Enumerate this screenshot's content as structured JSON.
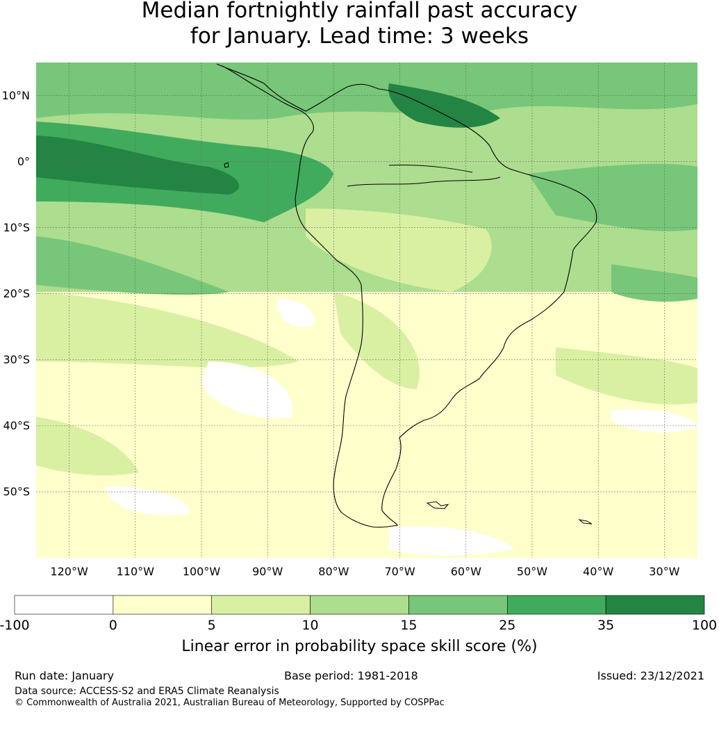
{
  "title": {
    "line1": "Median fortnightly rainfall past accuracy",
    "line2": "for January. Lead time: 3 weeks"
  },
  "map": {
    "region": "South America",
    "lat_labels": [
      "10°N",
      "0°",
      "10°S",
      "20°S",
      "30°S",
      "40°S",
      "50°S"
    ],
    "lat_values": [
      10,
      0,
      -10,
      -20,
      -30,
      -40,
      -50
    ],
    "lon_labels": [
      "120°W",
      "110°W",
      "100°W",
      "90°W",
      "80°W",
      "70°W",
      "60°W",
      "50°W",
      "40°W",
      "30°W"
    ],
    "lon_values": [
      -120,
      -110,
      -100,
      -90,
      -80,
      -70,
      -60,
      -50,
      -40,
      -30
    ],
    "extent": {
      "lon_min": -125,
      "lon_max": -25,
      "lat_min": -60,
      "lat_max": 15
    }
  },
  "colorbar": {
    "ticks": [
      "-100",
      "0",
      "5",
      "10",
      "15",
      "25",
      "35",
      "100"
    ],
    "colors": [
      "#ffffff",
      "#ffffcc",
      "#d9f0a3",
      "#addd8e",
      "#78c679",
      "#41ab5d",
      "#238443"
    ],
    "label": "Linear error in probability space skill score (%)"
  },
  "footer": {
    "run_date": "Run date: January",
    "base_period": "Base period: 1981-2018",
    "issued": "Issued: 23/12/2021",
    "source": "Data source: ACCESS-S2 and ERA5 Climate Reanalysis",
    "copyright": "© Commonwealth of Australia 2021, Australian Bureau of Meteorology, Supported by COSPPac"
  }
}
